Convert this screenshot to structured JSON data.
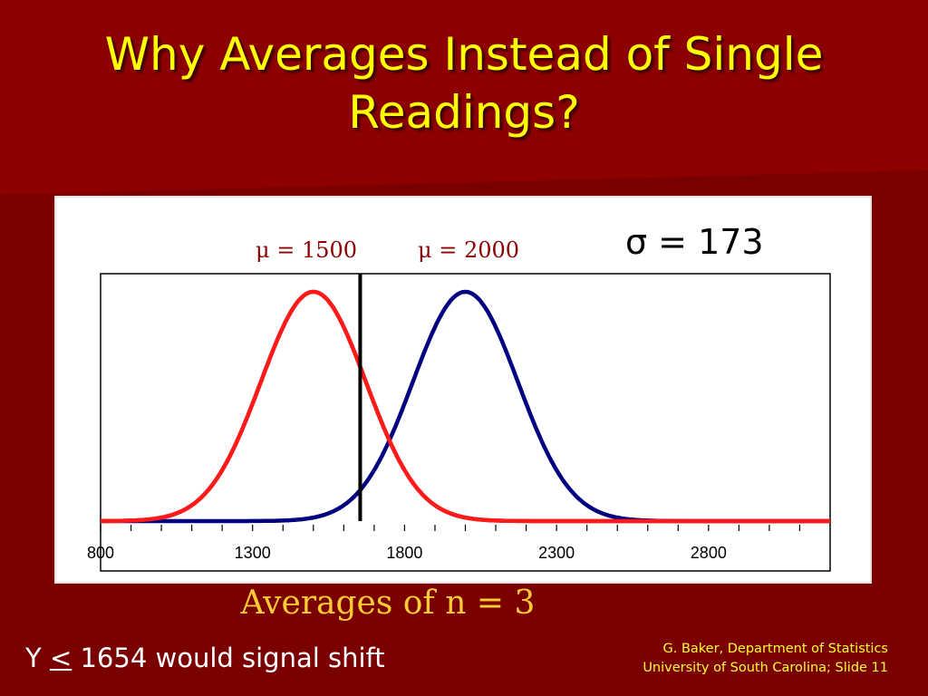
{
  "slide": {
    "title_line1": "Why Averages Instead of Single",
    "title_line2": "Readings?",
    "subtitle": "Averages of n = 3",
    "signal_prefix": "Y ",
    "signal_symbol": "<",
    "signal_suffix": " 1654 would signal shift",
    "credit_line1": "G. Baker, Department of Statistics",
    "credit_line2": "University of South Carolina; Slide 11",
    "colors": {
      "background": "#7a0000",
      "title": "#ffff00",
      "subtitle": "#ffcc33",
      "credit": "#ffff33"
    }
  },
  "chart_data": {
    "type": "line",
    "annotations": {
      "mu1_label": "μ = 1500",
      "mu2_label": "μ = 2000",
      "sigma_label": "σ = 173"
    },
    "xlim": [
      800,
      3200
    ],
    "x_ticks": [
      800,
      1300,
      1800,
      2300,
      2800
    ],
    "x_minor_step": 100,
    "grid": false,
    "legend": "none",
    "threshold": {
      "x": 1654,
      "color": "#000000"
    },
    "series": [
      {
        "mean": 1500,
        "sd": 173,
        "color": "#ff1a1a"
      },
      {
        "mean": 2000,
        "sd": 173,
        "color": "#000080"
      }
    ]
  }
}
